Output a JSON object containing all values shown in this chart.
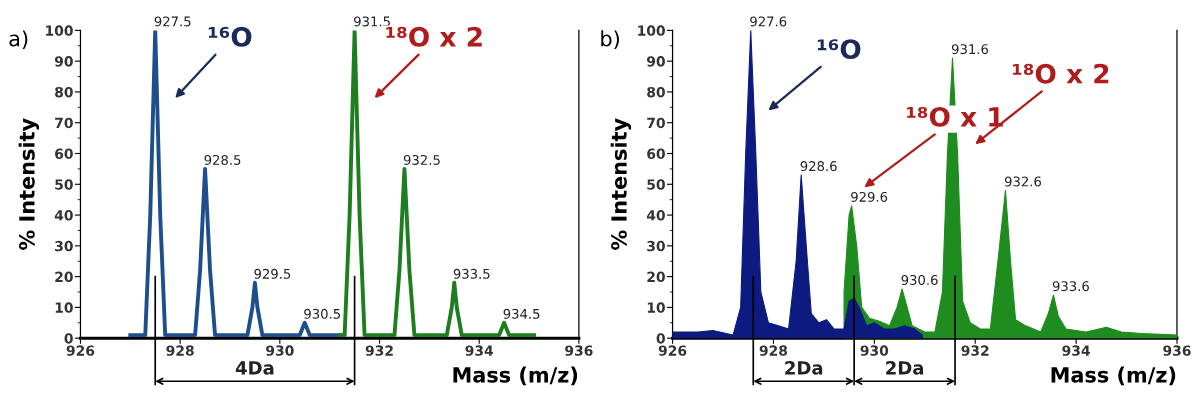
{
  "chart_data": [
    {
      "type": "line",
      "title": "a)",
      "xlabel": "Mass (m/z)",
      "ylabel": "% Intensity",
      "xlim": [
        926,
        936
      ],
      "xticks": [
        926,
        928,
        930,
        932,
        934,
        936
      ],
      "ylim": [
        0,
        100
      ],
      "yticks": [
        0,
        10,
        20,
        30,
        40,
        50,
        60,
        70,
        80,
        90,
        100
      ],
      "grid": false,
      "legend": false,
      "series": [
        {
          "color": "#1f4e8c",
          "x": [
            927.0,
            927.3,
            927.4,
            927.5,
            927.6,
            927.7,
            928.3,
            928.4,
            928.5,
            928.6,
            928.7,
            929.35,
            929.45,
            929.5,
            929.55,
            929.65,
            930.4,
            930.5,
            930.6,
            931.2
          ],
          "values": [
            1,
            1,
            40,
            100,
            40,
            1,
            1,
            22,
            55,
            22,
            1,
            1,
            10,
            18,
            10,
            1,
            1,
            5,
            1,
            1
          ]
        },
        {
          "color": "#1e7d1e",
          "x": [
            931.2,
            931.3,
            931.4,
            931.5,
            931.6,
            931.7,
            932.3,
            932.4,
            932.5,
            932.6,
            932.7,
            933.35,
            933.45,
            933.5,
            933.55,
            933.65,
            934.4,
            934.5,
            934.6,
            935.1
          ],
          "values": [
            1,
            1,
            40,
            100,
            40,
            1,
            1,
            22,
            55,
            22,
            1,
            1,
            10,
            18,
            10,
            1,
            1,
            5,
            1,
            1
          ]
        }
      ],
      "annotations": [
        {
          "text": "927.5",
          "x": 927.5,
          "y": 100
        },
        {
          "text": "928.5",
          "x": 928.5,
          "y": 55
        },
        {
          "text": "929.5",
          "x": 929.5,
          "y": 18
        },
        {
          "text": "930.5",
          "x": 930.5,
          "y": 5
        },
        {
          "text": "931.5",
          "x": 931.5,
          "y": 100
        },
        {
          "text": "932.5",
          "x": 932.5,
          "y": 55
        },
        {
          "text": "933.5",
          "x": 933.5,
          "y": 18
        },
        {
          "text": "934.5",
          "x": 934.5,
          "y": 5
        },
        "¹⁶O",
        "¹⁸O x 2",
        "4Da"
      ],
      "ref_lines": [
        {
          "axis": "x",
          "value": 927.5
        },
        {
          "axis": "x",
          "value": 931.5
        }
      ]
    },
    {
      "type": "area",
      "title": "b)",
      "xlabel": "Mass (m/z)",
      "ylabel": "% Intensity",
      "xlim": [
        926,
        936
      ],
      "xticks": [
        926,
        928,
        930,
        932,
        934,
        936
      ],
      "ylim": [
        0,
        100
      ],
      "yticks": [
        0,
        10,
        20,
        30,
        40,
        50,
        60,
        70,
        80,
        90,
        100
      ],
      "grid": false,
      "legend": false,
      "series": [
        {
          "color": "#1e8c1e",
          "x": [
            929.4,
            929.5,
            929.55,
            929.65,
            929.75,
            929.9,
            930.1,
            930.3,
            930.45,
            930.55,
            930.65,
            930.75,
            931.0,
            931.2,
            931.35,
            931.45,
            931.55,
            931.65,
            931.75,
            931.9,
            932.1,
            932.3,
            932.45,
            932.6,
            932.7,
            932.8,
            933.0,
            933.3,
            933.45,
            933.55,
            933.65,
            933.8,
            934.2,
            934.6,
            934.9,
            935.3,
            936.0
          ],
          "values": [
            15,
            40,
            43,
            30,
            10,
            6.5,
            5.5,
            4,
            10,
            16,
            10,
            4,
            2,
            2,
            15,
            60,
            91,
            60,
            12,
            5,
            3,
            3,
            25,
            48,
            25,
            6,
            4,
            2,
            8,
            14,
            7,
            3,
            2,
            3.5,
            2,
            1.5,
            1
          ]
        },
        {
          "color": "#0d1a80",
          "x": [
            926.0,
            926.5,
            926.8,
            927.2,
            927.35,
            927.45,
            927.55,
            927.65,
            927.75,
            927.9,
            928.1,
            928.3,
            928.45,
            928.55,
            928.65,
            928.75,
            928.9,
            929.05,
            929.2,
            929.4,
            929.5,
            929.6,
            929.7,
            929.85,
            930.0,
            930.2,
            930.4,
            930.6,
            930.8,
            930.95
          ],
          "values": [
            2,
            2,
            2.5,
            1,
            10,
            60,
            100,
            60,
            15,
            5,
            4,
            3,
            25,
            53,
            30,
            8,
            5,
            6,
            3,
            3,
            12,
            13,
            10,
            4,
            5,
            3,
            3,
            4,
            3,
            1
          ]
        }
      ],
      "annotations": [
        {
          "text": "927.6",
          "x": 927.55,
          "y": 100
        },
        {
          "text": "928.6",
          "x": 928.55,
          "y": 53
        },
        {
          "text": "929.6",
          "x": 929.55,
          "y": 43
        },
        {
          "text": "930.6",
          "x": 930.55,
          "y": 16
        },
        {
          "text": "931.6",
          "x": 931.55,
          "y": 91
        },
        {
          "text": "932.6",
          "x": 932.6,
          "y": 48
        },
        {
          "text": "933.6",
          "x": 933.55,
          "y": 14
        },
        "¹⁶O",
        "¹⁸O x 1",
        "¹⁸O x 2",
        "2Da",
        "2Da"
      ],
      "ref_lines": [
        {
          "axis": "x",
          "value": 927.6
        },
        {
          "axis": "x",
          "value": 929.6
        },
        {
          "axis": "x",
          "value": 931.6
        }
      ]
    }
  ]
}
